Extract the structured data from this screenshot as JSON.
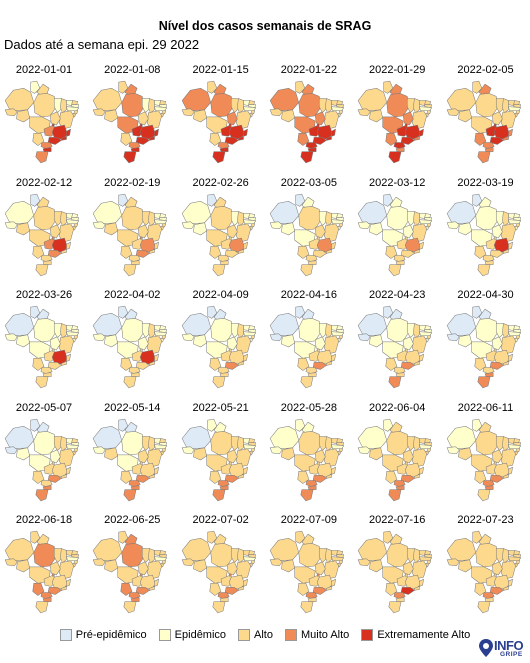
{
  "title": "Nível dos casos semanais de SRAG",
  "subtitle": "Dados até a semana epi. 29 2022",
  "legend": [
    {
      "label": "Pré-epidêmico",
      "color": "#deebf7"
    },
    {
      "label": "Epidêmico",
      "color": "#ffffcc"
    },
    {
      "label": "Alto",
      "color": "#fdd98e"
    },
    {
      "label": "Muito Alto",
      "color": "#f08a56"
    },
    {
      "label": "Extremamente Alto",
      "color": "#d7301f"
    }
  ],
  "logo": {
    "word": "INFO",
    "sub": "GRIPE"
  },
  "weeks": [
    {
      "date": "2022-01-01",
      "levels": [
        3,
        2,
        3,
        3,
        3,
        3,
        2,
        3,
        2,
        3,
        2,
        2,
        3,
        3,
        3,
        3,
        3,
        3,
        4,
        5,
        5,
        5,
        5,
        5,
        4,
        5,
        4
      ]
    },
    {
      "date": "2022-01-08",
      "levels": [
        3,
        3,
        4,
        4,
        3,
        3,
        2,
        3,
        2,
        3,
        2,
        2,
        3,
        3,
        3,
        3,
        4,
        3,
        5,
        5,
        5,
        5,
        5,
        5,
        4,
        5,
        5
      ]
    },
    {
      "date": "2022-01-15",
      "levels": [
        4,
        3,
        4,
        4,
        3,
        3,
        3,
        3,
        2,
        3,
        2,
        2,
        3,
        3,
        3,
        4,
        3,
        3,
        5,
        5,
        5,
        5,
        5,
        5,
        4,
        5,
        5
      ]
    },
    {
      "date": "2022-01-22",
      "levels": [
        4,
        3,
        4,
        4,
        3,
        3,
        3,
        3,
        3,
        3,
        3,
        2,
        3,
        3,
        3,
        4,
        4,
        4,
        5,
        5,
        5,
        5,
        5,
        5,
        5,
        5,
        5
      ]
    },
    {
      "date": "2022-01-29",
      "levels": [
        3,
        3,
        4,
        4,
        3,
        3,
        3,
        3,
        3,
        3,
        3,
        2,
        3,
        3,
        3,
        4,
        4,
        4,
        5,
        5,
        5,
        5,
        4,
        5,
        5,
        4,
        5
      ]
    },
    {
      "date": "2022-02-05",
      "levels": [
        3,
        3,
        4,
        3,
        3,
        3,
        3,
        3,
        3,
        3,
        3,
        2,
        3,
        3,
        3,
        3,
        3,
        4,
        5,
        5,
        5,
        4,
        4,
        5,
        4,
        4,
        4
      ]
    },
    {
      "date": "2022-02-12",
      "levels": [
        2,
        1,
        3,
        3,
        2,
        3,
        3,
        3,
        2,
        2,
        2,
        2,
        3,
        3,
        3,
        3,
        3,
        3,
        4,
        4,
        5,
        3,
        3,
        4,
        3,
        3,
        3
      ]
    },
    {
      "date": "2022-02-19",
      "levels": [
        2,
        1,
        3,
        3,
        2,
        3,
        3,
        3,
        2,
        2,
        2,
        2,
        3,
        3,
        3,
        3,
        3,
        3,
        3,
        4,
        4,
        3,
        3,
        4,
        3,
        3,
        3
      ]
    },
    {
      "date": "2022-02-26",
      "levels": [
        2,
        1,
        3,
        3,
        2,
        2,
        2,
        3,
        2,
        2,
        2,
        2,
        3,
        3,
        3,
        3,
        3,
        3,
        3,
        3,
        4,
        3,
        3,
        3,
        3,
        3,
        3
      ]
    },
    {
      "date": "2022-03-05",
      "levels": [
        1,
        1,
        2,
        3,
        2,
        2,
        2,
        3,
        2,
        2,
        2,
        2,
        3,
        2,
        3,
        3,
        2,
        3,
        3,
        3,
        4,
        3,
        3,
        3,
        3,
        3,
        3
      ]
    },
    {
      "date": "2022-03-12",
      "levels": [
        1,
        1,
        2,
        2,
        2,
        2,
        2,
        3,
        2,
        2,
        2,
        2,
        3,
        2,
        3,
        2,
        2,
        3,
        3,
        3,
        4,
        3,
        3,
        3,
        3,
        3,
        3
      ]
    },
    {
      "date": "2022-03-19",
      "levels": [
        1,
        1,
        2,
        2,
        2,
        2,
        2,
        3,
        2,
        2,
        2,
        2,
        3,
        2,
        3,
        2,
        2,
        3,
        3,
        3,
        5,
        3,
        3,
        3,
        3,
        3,
        3
      ]
    },
    {
      "date": "2022-03-26",
      "levels": [
        1,
        1,
        1,
        2,
        2,
        2,
        2,
        3,
        2,
        2,
        2,
        2,
        3,
        2,
        3,
        2,
        2,
        3,
        3,
        3,
        5,
        3,
        3,
        3,
        3,
        3,
        3
      ]
    },
    {
      "date": "2022-04-02",
      "levels": [
        1,
        1,
        1,
        2,
        2,
        2,
        2,
        3,
        2,
        2,
        2,
        2,
        3,
        2,
        3,
        2,
        2,
        3,
        3,
        3,
        5,
        3,
        3,
        3,
        3,
        3,
        3
      ]
    },
    {
      "date": "2022-04-09",
      "levels": [
        1,
        1,
        1,
        2,
        2,
        2,
        2,
        3,
        2,
        2,
        2,
        2,
        3,
        2,
        3,
        2,
        2,
        3,
        3,
        3,
        3,
        3,
        3,
        4,
        3,
        3,
        3
      ]
    },
    {
      "date": "2022-04-16",
      "levels": [
        1,
        1,
        1,
        2,
        1,
        2,
        2,
        3,
        2,
        2,
        2,
        2,
        3,
        2,
        3,
        2,
        2,
        3,
        3,
        3,
        3,
        3,
        3,
        4,
        3,
        3,
        3
      ]
    },
    {
      "date": "2022-04-23",
      "levels": [
        1,
        1,
        1,
        2,
        1,
        2,
        2,
        3,
        2,
        2,
        2,
        2,
        3,
        2,
        3,
        2,
        2,
        3,
        3,
        3,
        3,
        3,
        3,
        4,
        3,
        3,
        4
      ]
    },
    {
      "date": "2022-04-30",
      "levels": [
        1,
        1,
        1,
        2,
        1,
        2,
        2,
        3,
        2,
        2,
        2,
        2,
        3,
        2,
        3,
        2,
        2,
        3,
        3,
        3,
        3,
        3,
        3,
        4,
        3,
        4,
        4
      ]
    },
    {
      "date": "2022-05-07",
      "levels": [
        1,
        1,
        1,
        2,
        1,
        2,
        3,
        3,
        2,
        3,
        2,
        2,
        3,
        3,
        3,
        2,
        2,
        3,
        3,
        3,
        3,
        3,
        3,
        4,
        3,
        4,
        4
      ]
    },
    {
      "date": "2022-05-14",
      "levels": [
        1,
        1,
        1,
        2,
        2,
        3,
        3,
        3,
        2,
        3,
        2,
        2,
        3,
        3,
        3,
        3,
        2,
        3,
        3,
        3,
        3,
        3,
        3,
        4,
        4,
        4,
        4
      ]
    },
    {
      "date": "2022-05-21",
      "levels": [
        1,
        2,
        2,
        3,
        2,
        3,
        3,
        3,
        2,
        3,
        3,
        2,
        3,
        3,
        3,
        3,
        3,
        3,
        3,
        3,
        3,
        3,
        3,
        4,
        4,
        4,
        4
      ]
    },
    {
      "date": "2022-05-28",
      "levels": [
        2,
        2,
        2,
        3,
        2,
        3,
        3,
        3,
        3,
        3,
        3,
        2,
        3,
        3,
        3,
        3,
        3,
        3,
        3,
        3,
        3,
        3,
        3,
        4,
        4,
        4,
        4
      ]
    },
    {
      "date": "2022-06-04",
      "levels": [
        2,
        2,
        3,
        3,
        2,
        3,
        3,
        3,
        3,
        3,
        3,
        2,
        3,
        3,
        3,
        3,
        3,
        3,
        3,
        3,
        3,
        3,
        3,
        4,
        4,
        4,
        4
      ]
    },
    {
      "date": "2022-06-11",
      "levels": [
        2,
        2,
        3,
        3,
        2,
        3,
        3,
        3,
        3,
        3,
        3,
        2,
        3,
        3,
        3,
        3,
        3,
        3,
        3,
        3,
        3,
        3,
        3,
        4,
        4,
        4,
        3
      ]
    },
    {
      "date": "2022-06-18",
      "levels": [
        3,
        3,
        3,
        4,
        3,
        3,
        3,
        3,
        3,
        3,
        3,
        2,
        3,
        3,
        3,
        3,
        3,
        4,
        3,
        4,
        3,
        3,
        3,
        4,
        4,
        4,
        3
      ]
    },
    {
      "date": "2022-06-25",
      "levels": [
        3,
        3,
        4,
        4,
        3,
        3,
        3,
        3,
        3,
        3,
        3,
        2,
        3,
        3,
        3,
        3,
        3,
        4,
        3,
        4,
        3,
        3,
        3,
        4,
        4,
        4,
        3
      ]
    },
    {
      "date": "2022-07-02",
      "levels": [
        3,
        3,
        3,
        3,
        3,
        3,
        3,
        3,
        3,
        3,
        3,
        2,
        3,
        3,
        3,
        3,
        3,
        3,
        3,
        4,
        3,
        3,
        3,
        4,
        4,
        3,
        3
      ]
    },
    {
      "date": "2022-07-09",
      "levels": [
        3,
        3,
        3,
        3,
        3,
        3,
        3,
        3,
        3,
        3,
        3,
        3,
        3,
        3,
        3,
        3,
        3,
        3,
        3,
        4,
        3,
        3,
        3,
        4,
        4,
        3,
        3
      ]
    },
    {
      "date": "2022-07-16",
      "levels": [
        3,
        3,
        3,
        3,
        3,
        3,
        3,
        3,
        3,
        3,
        3,
        3,
        3,
        3,
        3,
        3,
        3,
        3,
        3,
        3,
        3,
        3,
        3,
        5,
        4,
        3,
        3
      ]
    },
    {
      "date": "2022-07-23",
      "levels": [
        3,
        3,
        3,
        3,
        3,
        3,
        3,
        3,
        3,
        3,
        3,
        3,
        3,
        3,
        3,
        3,
        3,
        3,
        3,
        3,
        3,
        3,
        3,
        4,
        4,
        3,
        3
      ]
    }
  ]
}
